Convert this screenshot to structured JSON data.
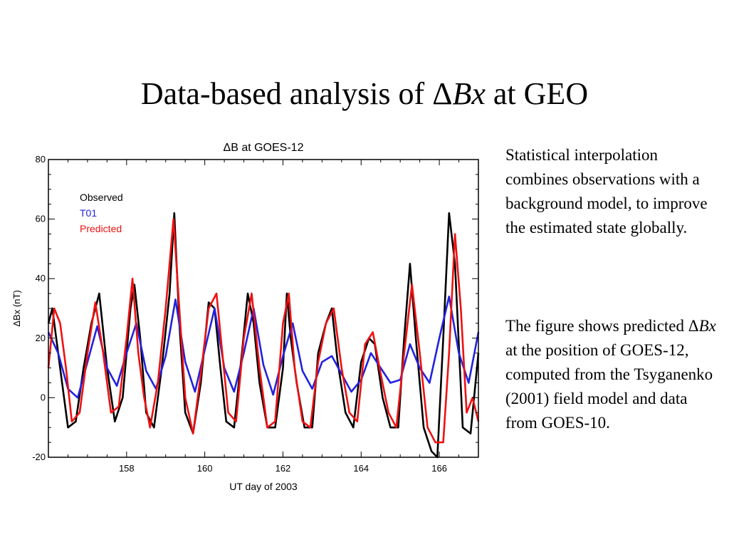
{
  "slide": {
    "title_prefix": "Data-based analysis of ",
    "title_delta": "Δ",
    "title_var": "Bx",
    "title_suffix": " at GEO",
    "paragraph1": "Statistical interpolation combines observations with a background model, to improve the estimated state globally.",
    "paragraph2_prefix": "The figure shows predicted ",
    "paragraph2_delta": "Δ",
    "paragraph2_var": "Bx",
    "paragraph2_suffix": " at the position of GOES-12, computed from the Tsyganenko (2001) field model and data from GOES-10."
  },
  "chart_data": {
    "type": "line",
    "title": "ΔB at GOES-12",
    "xlabel": "UT day of 2003",
    "ylabel": "ΔBx (nT)",
    "xlim": [
      156,
      167
    ],
    "ylim": [
      -20,
      80
    ],
    "xticks": [
      158,
      160,
      162,
      164,
      166
    ],
    "yticks": [
      -20,
      0,
      20,
      40,
      60,
      80
    ],
    "grid": false,
    "legend_position": "top-left",
    "series": [
      {
        "name": "Observed",
        "color": "#000000",
        "x": [
          156.0,
          156.1,
          156.2,
          156.35,
          156.5,
          156.7,
          156.9,
          157.1,
          157.3,
          157.5,
          157.7,
          157.9,
          158.1,
          158.2,
          158.35,
          158.5,
          158.7,
          158.9,
          159.1,
          159.22,
          159.35,
          159.5,
          159.7,
          159.9,
          160.1,
          160.25,
          160.4,
          160.55,
          160.75,
          160.95,
          161.1,
          161.25,
          161.4,
          161.6,
          161.8,
          162.0,
          162.1,
          162.2,
          162.35,
          162.55,
          162.75,
          162.9,
          163.1,
          163.25,
          163.4,
          163.6,
          163.8,
          164.0,
          164.2,
          164.35,
          164.55,
          164.75,
          164.95,
          165.1,
          165.25,
          165.4,
          165.6,
          165.8,
          165.95,
          166.1,
          166.25,
          166.4,
          166.6,
          166.8,
          167.0
        ],
        "values": [
          25,
          30,
          20,
          5,
          -10,
          -8,
          10,
          25,
          35,
          10,
          -8,
          0,
          30,
          38,
          20,
          -5,
          -10,
          10,
          35,
          62,
          25,
          -5,
          -12,
          5,
          32,
          30,
          10,
          -8,
          -10,
          15,
          35,
          25,
          5,
          -10,
          -10,
          10,
          35,
          20,
          5,
          -10,
          -10,
          15,
          25,
          30,
          12,
          -5,
          -10,
          12,
          20,
          18,
          0,
          -10,
          -10,
          20,
          45,
          20,
          -10,
          -18,
          -20,
          20,
          62,
          45,
          -10,
          -12,
          15
        ]
      },
      {
        "name": "T01",
        "color": "#2222dd",
        "x": [
          156.0,
          156.25,
          156.5,
          156.75,
          157.0,
          157.25,
          157.5,
          157.75,
          158.0,
          158.25,
          158.5,
          158.75,
          159.0,
          159.25,
          159.5,
          159.75,
          160.0,
          160.25,
          160.5,
          160.75,
          161.0,
          161.25,
          161.5,
          161.75,
          162.0,
          162.25,
          162.5,
          162.75,
          163.0,
          163.25,
          163.5,
          163.75,
          164.0,
          164.25,
          164.5,
          164.75,
          165.0,
          165.25,
          165.5,
          165.75,
          166.0,
          166.25,
          166.5,
          166.75,
          167.0
        ],
        "values": [
          22,
          15,
          3,
          0,
          12,
          24,
          10,
          4,
          15,
          25,
          9,
          3,
          14,
          33,
          12,
          2,
          16,
          30,
          10,
          2,
          15,
          30,
          11,
          1,
          14,
          25,
          9,
          3,
          12,
          14,
          8,
          2,
          6,
          15,
          10,
          5,
          6,
          18,
          10,
          5,
          20,
          34,
          15,
          5,
          22
        ]
      },
      {
        "name": "Predicted",
        "color": "#ee1111",
        "x": [
          156.0,
          156.15,
          156.3,
          156.45,
          156.6,
          156.8,
          157.0,
          157.2,
          157.4,
          157.6,
          157.8,
          158.0,
          158.15,
          158.3,
          158.45,
          158.6,
          158.8,
          159.0,
          159.2,
          159.35,
          159.5,
          159.7,
          159.9,
          160.1,
          160.3,
          160.45,
          160.6,
          160.8,
          161.0,
          161.2,
          161.4,
          161.6,
          161.8,
          162.0,
          162.15,
          162.3,
          162.5,
          162.7,
          162.9,
          163.1,
          163.3,
          163.5,
          163.7,
          163.9,
          164.1,
          164.3,
          164.5,
          164.7,
          164.9,
          165.1,
          165.3,
          165.5,
          165.7,
          165.9,
          166.1,
          166.25,
          166.4,
          166.55,
          166.7,
          166.85,
          167.0
        ],
        "values": [
          10,
          30,
          25,
          10,
          -8,
          -5,
          15,
          32,
          15,
          -5,
          -3,
          20,
          40,
          15,
          0,
          -10,
          5,
          30,
          60,
          30,
          0,
          -12,
          8,
          30,
          35,
          15,
          -5,
          -8,
          20,
          35,
          10,
          -10,
          -8,
          25,
          35,
          10,
          -8,
          -10,
          12,
          25,
          30,
          10,
          -5,
          -8,
          18,
          22,
          8,
          -5,
          -10,
          15,
          38,
          15,
          -10,
          -15,
          -15,
          15,
          55,
          30,
          -5,
          0,
          -8
        ]
      }
    ]
  }
}
